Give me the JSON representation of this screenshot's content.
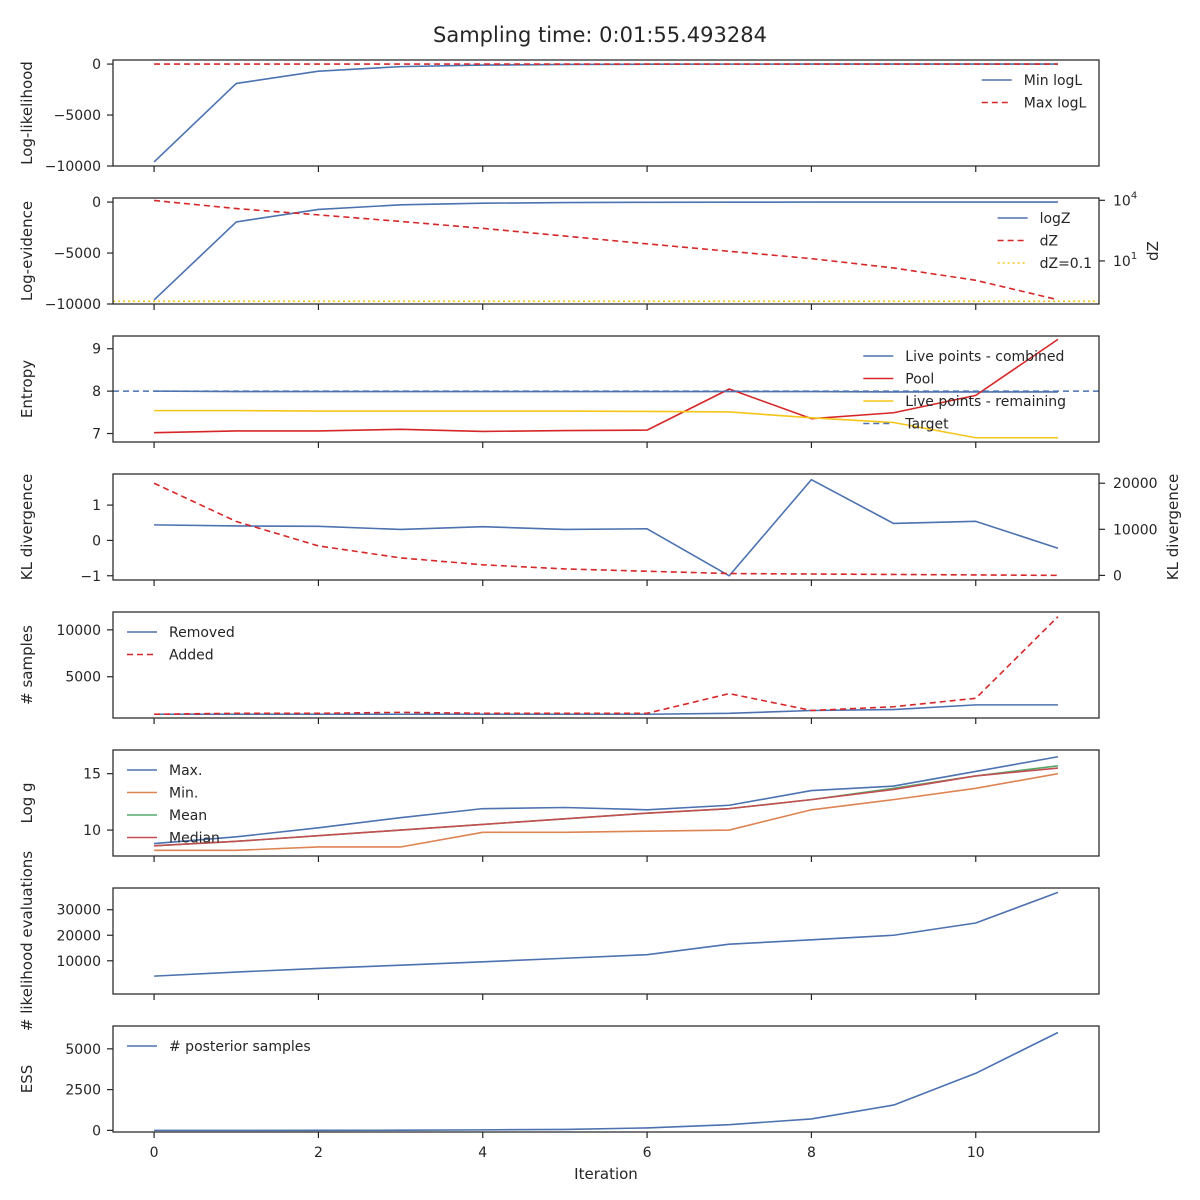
{
  "figure": {
    "title": "Sampling time: 0:01:55.493284",
    "xlabel": "Iteration"
  },
  "colors": {
    "blue": "#4c72b0",
    "red": "#d62728",
    "yellow": "#f5c518",
    "orange": "#dd8452",
    "green": "#55a868",
    "crimson": "#c44e52",
    "axis": "#262626"
  },
  "chart_data": [
    {
      "type": "line",
      "ylabel": "Log-likelihood",
      "xlim": [
        -0.5,
        11.5
      ],
      "ylim": [
        -10000,
        400
      ],
      "yticks": [
        0,
        -5000,
        -10000
      ],
      "ytick_labels": [
        "0",
        "−5000",
        "−10000"
      ],
      "legend": "top-right",
      "series": [
        {
          "name": "Min logL",
          "color": "#4c72b0",
          "dash": "solid",
          "x": [
            0,
            1,
            2,
            3,
            4,
            5,
            6,
            7,
            8,
            9,
            10,
            11
          ],
          "y": [
            -9600,
            -1900,
            -700,
            -250,
            -100,
            -40,
            -15,
            -5,
            -2,
            -1,
            -0.5,
            -0.2
          ]
        },
        {
          "name": "Max logL",
          "color": "#d62728",
          "dash": "dashed",
          "x": [
            0,
            1,
            2,
            3,
            4,
            5,
            6,
            7,
            8,
            9,
            10,
            11
          ],
          "y": [
            -1,
            -1,
            -1,
            -1,
            -1,
            -1,
            -1,
            -1,
            -1,
            -1,
            -1,
            -1
          ]
        }
      ]
    },
    {
      "type": "line",
      "ylabel": "Log-evidence",
      "y2label": "dZ",
      "xlim": [
        -0.5,
        11.5
      ],
      "ylim": [
        -10000,
        400
      ],
      "yticks": [
        0,
        -5000,
        -10000
      ],
      "ytick_labels": [
        "0",
        "−5000",
        "−10000"
      ],
      "y2log": true,
      "y2lim": [
        0.074,
        13000
      ],
      "y2ticks": [
        10000,
        10
      ],
      "y2tick_labels": [
        [
          "10",
          "4"
        ],
        [
          "10",
          "1"
        ]
      ],
      "legend": "top-right",
      "series": [
        {
          "name": "logZ",
          "color": "#4c72b0",
          "dash": "solid",
          "axis": "left",
          "x": [
            0,
            1,
            2,
            3,
            4,
            5,
            6,
            7,
            8,
            9,
            10,
            11
          ],
          "y": [
            -9600,
            -1950,
            -720,
            -270,
            -110,
            -50,
            -20,
            -8,
            -3,
            -1.5,
            -1,
            -0.8
          ]
        },
        {
          "name": "dZ",
          "color": "#d62728",
          "dash": "dashed",
          "axis": "right",
          "x": [
            0,
            1,
            2,
            3,
            4,
            5,
            6,
            7,
            8,
            9,
            10,
            11
          ],
          "y": [
            9800,
            3900,
            1900,
            900,
            410,
            170,
            70,
            30,
            13,
            4.5,
            1.1,
            0.12
          ]
        },
        {
          "name": "dZ=0.1",
          "color": "#f5c518",
          "dash": "dotted",
          "axis": "right",
          "x": [
            -0.5,
            11.5
          ],
          "y": [
            0.1,
            0.1
          ]
        }
      ]
    },
    {
      "type": "line",
      "ylabel": "Entropy",
      "xlim": [
        -0.5,
        11.5
      ],
      "ylim": [
        6.8,
        9.3
      ],
      "yticks": [
        9,
        8,
        7
      ],
      "ytick_labels": [
        "9",
        "8",
        "7"
      ],
      "legend": "top-right",
      "series": [
        {
          "name": "Live points - combined",
          "color": "#4c72b0",
          "dash": "solid",
          "x": [
            0,
            1,
            2,
            3,
            4,
            5,
            6,
            7,
            8,
            9,
            10,
            11
          ],
          "y": [
            8.0,
            7.99,
            7.99,
            7.99,
            7.99,
            7.99,
            7.99,
            7.99,
            7.99,
            7.98,
            7.98,
            7.98
          ]
        },
        {
          "name": "Pool",
          "color": "#d62728",
          "dash": "solid",
          "x": [
            0,
            1,
            2,
            3,
            4,
            5,
            6,
            7,
            8,
            9,
            10,
            11
          ],
          "y": [
            7.02,
            7.06,
            7.06,
            7.1,
            7.05,
            7.07,
            7.08,
            8.05,
            7.35,
            7.49,
            7.9,
            9.22
          ]
        },
        {
          "name": "Live points - remaining",
          "color": "#f5c518",
          "dash": "solid",
          "x": [
            0,
            1,
            2,
            3,
            4,
            5,
            6,
            7,
            8,
            9,
            10,
            11
          ],
          "y": [
            7.54,
            7.54,
            7.53,
            7.53,
            7.53,
            7.53,
            7.52,
            7.51,
            7.37,
            7.26,
            6.9,
            6.9
          ]
        },
        {
          "name": "Target",
          "color": "#4c72b0",
          "dash": "dashed",
          "x": [
            -0.5,
            11.5
          ],
          "y": [
            8.0,
            8.0
          ]
        }
      ]
    },
    {
      "type": "line",
      "ylabel": "KL divergence",
      "y2label": "KL divergence",
      "xlim": [
        -0.5,
        11.5
      ],
      "ylim": [
        -1.12,
        1.88
      ],
      "yticks": [
        1,
        0,
        -1
      ],
      "ytick_labels": [
        "1",
        "0",
        "−1"
      ],
      "y2lim": [
        -1000,
        22000
      ],
      "y2ticks": [
        20000,
        10000,
        0
      ],
      "y2tick_labels": [
        "20000",
        "10000",
        "0"
      ],
      "legend": "none",
      "series": [
        {
          "color": "#4c72b0",
          "dash": "solid",
          "axis": "left",
          "x": [
            0,
            1,
            2,
            3,
            4,
            5,
            6,
            7,
            8,
            9,
            10,
            11
          ],
          "y": [
            0.44,
            0.41,
            0.4,
            0.31,
            0.39,
            0.31,
            0.33,
            -1.0,
            1.72,
            0.48,
            0.54,
            -0.22
          ]
        },
        {
          "color": "#d62728",
          "dash": "dashed",
          "axis": "right",
          "x": [
            0,
            1,
            2,
            3,
            4,
            5,
            6,
            7,
            8,
            9,
            10,
            11
          ],
          "y": [
            20000,
            11700,
            6400,
            3800,
            2300,
            1400,
            900,
            400,
            300,
            200,
            100,
            0
          ]
        }
      ]
    },
    {
      "type": "line",
      "ylabel": "# samples",
      "xlim": [
        -0.5,
        11.5
      ],
      "ylim": [
        600,
        11900
      ],
      "yticks": [
        10000,
        5000
      ],
      "ytick_labels": [
        "10000",
        "5000"
      ],
      "legend": "top-left",
      "series": [
        {
          "name": "Removed",
          "color": "#4c72b0",
          "dash": "solid",
          "x": [
            0,
            1,
            2,
            3,
            4,
            5,
            6,
            7,
            8,
            9,
            10,
            11
          ],
          "y": [
            1000,
            1000,
            1000,
            1000,
            1000,
            1000,
            1000,
            1100,
            1400,
            1500,
            2000,
            2000
          ]
        },
        {
          "name": "Added",
          "color": "#d62728",
          "dash": "dashed",
          "x": [
            0,
            1,
            2,
            3,
            4,
            5,
            6,
            7,
            8,
            9,
            10,
            11
          ],
          "y": [
            1000,
            1100,
            1100,
            1200,
            1100,
            1100,
            1100,
            3200,
            1400,
            1800,
            2700,
            11400
          ]
        }
      ]
    },
    {
      "type": "line",
      "ylabel": "Log g",
      "xlim": [
        -0.5,
        11.5
      ],
      "ylim": [
        7.7,
        17.1
      ],
      "yticks": [
        15,
        10
      ],
      "ytick_labels": [
        "15",
        "10"
      ],
      "legend": "top-left",
      "series": [
        {
          "name": "Max.",
          "color": "#4c72b0",
          "dash": "solid",
          "x": [
            0,
            1,
            2,
            3,
            4,
            5,
            6,
            7,
            8,
            9,
            10,
            11
          ],
          "y": [
            8.8,
            9.4,
            10.2,
            11.1,
            11.9,
            12.0,
            11.8,
            12.2,
            13.5,
            13.9,
            15.2,
            16.5
          ]
        },
        {
          "name": "Min.",
          "color": "#dd8452",
          "dash": "solid",
          "x": [
            0,
            1,
            2,
            3,
            4,
            5,
            6,
            7,
            8,
            9,
            10,
            11
          ],
          "y": [
            8.2,
            8.2,
            8.5,
            8.5,
            9.8,
            9.8,
            9.9,
            10.0,
            11.8,
            12.7,
            13.7,
            15.0
          ]
        },
        {
          "name": "Mean",
          "color": "#55a868",
          "dash": "solid",
          "x": [
            0,
            1,
            2,
            3,
            4,
            5,
            6,
            7,
            8,
            9,
            10,
            11
          ],
          "y": [
            8.6,
            9.0,
            9.5,
            10.0,
            10.5,
            11.0,
            11.5,
            11.9,
            12.7,
            13.7,
            14.8,
            15.7
          ]
        },
        {
          "name": "Median",
          "color": "#c44e52",
          "dash": "solid",
          "x": [
            0,
            1,
            2,
            3,
            4,
            5,
            6,
            7,
            8,
            9,
            10,
            11
          ],
          "y": [
            8.6,
            9.0,
            9.5,
            10.0,
            10.5,
            11.0,
            11.5,
            11.9,
            12.7,
            13.6,
            14.8,
            15.5
          ]
        }
      ]
    },
    {
      "type": "line",
      "ylabel": "# likelihood evaluations",
      "xlim": [
        -0.5,
        11.5
      ],
      "ylim": [
        -3000,
        38500
      ],
      "yticks": [
        30000,
        20000,
        10000
      ],
      "ytick_labels": [
        "30000",
        "20000",
        "10000"
      ],
      "legend": "none",
      "series": [
        {
          "color": "#4c72b0",
          "dash": "solid",
          "x": [
            0,
            1,
            2,
            3,
            4,
            5,
            6,
            7,
            8,
            9,
            10,
            11
          ],
          "y": [
            4000,
            5600,
            7000,
            8300,
            9600,
            11000,
            12400,
            16500,
            18200,
            20000,
            24800,
            36800
          ]
        }
      ]
    },
    {
      "type": "line",
      "ylabel": "ESS",
      "xlim": [
        -0.5,
        11.5
      ],
      "ylim": [
        -100,
        6400
      ],
      "yticks": [
        5000,
        2500,
        0
      ],
      "ytick_labels": [
        "5000",
        "2500",
        "0"
      ],
      "legend": "top-left",
      "series": [
        {
          "name": "# posterior samples",
          "color": "#4c72b0",
          "dash": "solid",
          "x": [
            0,
            1,
            2,
            3,
            4,
            5,
            6,
            7,
            8,
            9,
            10,
            11
          ],
          "y": [
            0,
            0,
            2,
            10,
            30,
            60,
            150,
            350,
            700,
            1550,
            3500,
            6000
          ]
        }
      ]
    }
  ],
  "xaxis": {
    "ticks": [
      0,
      2,
      4,
      6,
      8,
      10
    ],
    "tick_labels": [
      "0",
      "2",
      "4",
      "6",
      "8",
      "10"
    ]
  }
}
